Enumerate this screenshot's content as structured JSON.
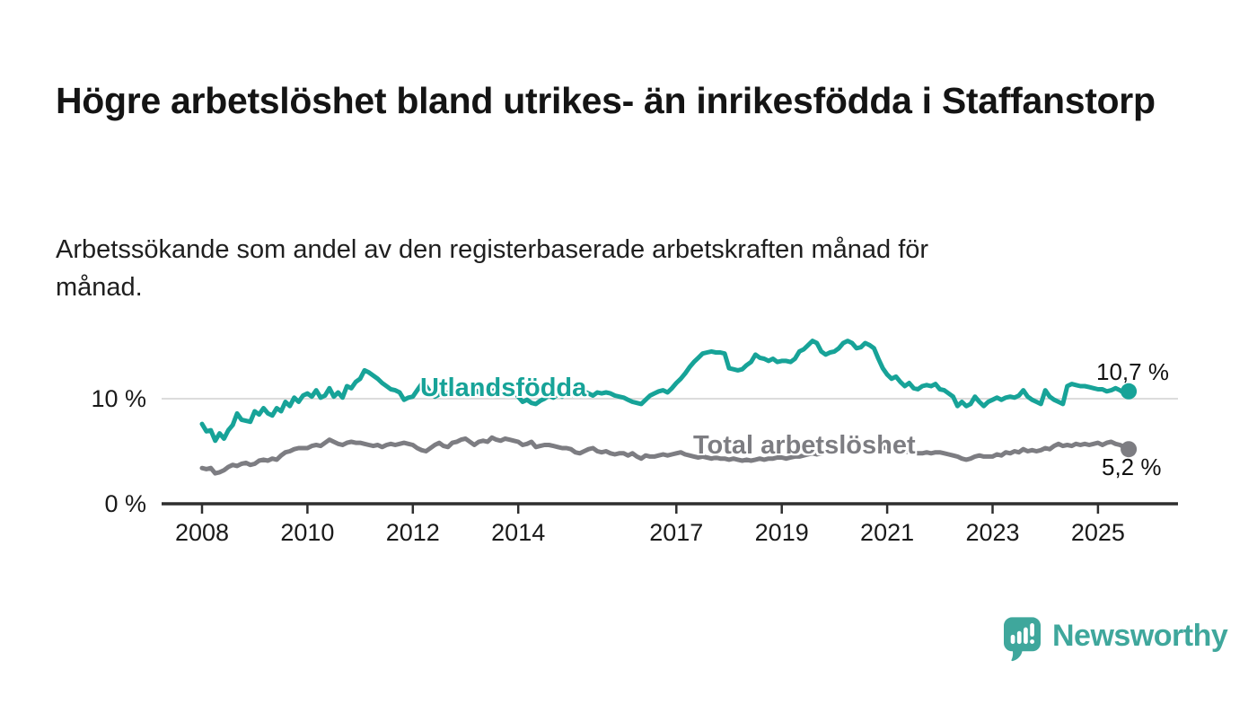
{
  "chart_data": {
    "type": "line",
    "title": "Högre arbetslöshet bland utrikes- än inrikesfödda i Staffanstorp",
    "subtitle": "Arbetssökande som andel av den registerbaserade arbetskraften månad för månad.",
    "x_axis": {
      "unit": "month",
      "start_year": 2008,
      "end": "2025-08",
      "ticks": [
        2008,
        2010,
        2012,
        2014,
        2017,
        2019,
        2021,
        2023,
        2025
      ]
    },
    "y_axis": {
      "ticks": [
        {
          "value": 0,
          "label": "0 %"
        },
        {
          "value": 10,
          "label": "10 %"
        }
      ],
      "ylim": [
        0,
        17.2
      ],
      "grid": "horizontal gridline at 10 % only"
    },
    "legend_position": "inline labels on lines",
    "series": [
      {
        "id": "utlandsfodda",
        "name": "Utlandsfödda",
        "color": "#17a398",
        "end_label": "10,7 %",
        "end_value": 10.7,
        "values": [
          7.6,
          6.9,
          7.0,
          6.0,
          6.7,
          6.2,
          7.0,
          7.5,
          8.6,
          8.0,
          7.9,
          7.8,
          8.8,
          8.5,
          9.1,
          8.6,
          8.4,
          9.1,
          8.8,
          9.7,
          9.3,
          10.1,
          9.7,
          10.3,
          10.5,
          10.2,
          10.8,
          10.1,
          10.3,
          11.0,
          10.2,
          10.6,
          10.1,
          11.2,
          11.0,
          11.6,
          11.9,
          12.7,
          12.5,
          12.2,
          11.9,
          11.5,
          11.2,
          10.9,
          10.8,
          10.6,
          9.9,
          10.1,
          10.2,
          10.8,
          11.4,
          11.2,
          10.6,
          10.2,
          10.4,
          10.7,
          10.5,
          10.8,
          10.6,
          10.9,
          11.0,
          10.7,
          10.9,
          10.6,
          10.8,
          10.5,
          10.7,
          10.9,
          10.6,
          10.8,
          10.5,
          10.6,
          10.2,
          9.7,
          9.9,
          9.6,
          9.5,
          9.8,
          10.0,
          10.3,
          10.1,
          10.4,
          10.2,
          10.5,
          10.3,
          10.6,
          10.4,
          10.7,
          10.5,
          10.3,
          10.6,
          10.5,
          10.6,
          10.5,
          10.3,
          10.2,
          10.1,
          9.9,
          9.7,
          9.6,
          9.5,
          9.9,
          10.3,
          10.5,
          10.7,
          10.8,
          10.6,
          11.0,
          11.5,
          11.9,
          12.4,
          13.0,
          13.5,
          13.9,
          14.3,
          14.4,
          14.5,
          14.4,
          14.4,
          14.3,
          12.9,
          12.8,
          12.7,
          12.8,
          13.2,
          13.5,
          14.2,
          13.9,
          13.8,
          13.6,
          13.8,
          13.5,
          13.6,
          13.6,
          13.5,
          13.8,
          14.5,
          14.7,
          15.1,
          15.5,
          15.3,
          14.5,
          14.2,
          14.4,
          14.5,
          14.8,
          15.3,
          15.5,
          15.3,
          14.8,
          14.9,
          15.3,
          15.1,
          14.8,
          13.8,
          12.9,
          12.3,
          11.9,
          12.1,
          11.6,
          11.2,
          11.5,
          11.0,
          10.9,
          11.2,
          11.3,
          11.2,
          11.4,
          10.9,
          10.8,
          10.5,
          10.2,
          9.3,
          9.7,
          9.3,
          9.5,
          10.2,
          9.7,
          9.3,
          9.7,
          9.9,
          10.1,
          9.9,
          10.1,
          10.2,
          10.1,
          10.3,
          10.8,
          10.2,
          9.9,
          9.7,
          9.5,
          10.8,
          10.2,
          9.9,
          9.7,
          9.5,
          11.2,
          11.4,
          11.3,
          11.2,
          11.2,
          11.1,
          11.0,
          10.9,
          10.9,
          10.7,
          10.8,
          11.0,
          10.8,
          10.5,
          10.7
        ]
      },
      {
        "id": "total",
        "name": "Total arbetslöshet",
        "color": "#7d7d82",
        "end_label": "5,2 %",
        "end_value": 5.2,
        "values": [
          3.4,
          3.3,
          3.4,
          2.9,
          3.0,
          3.2,
          3.5,
          3.7,
          3.6,
          3.8,
          3.9,
          3.7,
          3.8,
          4.1,
          4.2,
          4.1,
          4.3,
          4.2,
          4.6,
          4.9,
          5.0,
          5.2,
          5.3,
          5.3,
          5.3,
          5.5,
          5.6,
          5.5,
          5.8,
          6.1,
          5.9,
          5.7,
          5.6,
          5.8,
          5.9,
          5.8,
          5.8,
          5.7,
          5.6,
          5.5,
          5.6,
          5.4,
          5.6,
          5.7,
          5.6,
          5.7,
          5.8,
          5.7,
          5.6,
          5.3,
          5.1,
          5.0,
          5.3,
          5.6,
          5.8,
          5.5,
          5.4,
          5.8,
          5.9,
          6.1,
          6.2,
          5.9,
          5.6,
          5.9,
          6.0,
          5.9,
          6.3,
          6.1,
          6.0,
          6.2,
          6.1,
          6.0,
          5.9,
          5.6,
          5.7,
          5.9,
          5.4,
          5.5,
          5.6,
          5.6,
          5.5,
          5.4,
          5.3,
          5.3,
          5.2,
          4.9,
          4.8,
          5.0,
          5.2,
          5.3,
          5.0,
          4.9,
          5.0,
          4.8,
          4.7,
          4.8,
          4.8,
          4.6,
          4.8,
          4.5,
          4.3,
          4.6,
          4.5,
          4.5,
          4.6,
          4.7,
          4.6,
          4.7,
          4.8,
          4.9,
          4.7,
          4.6,
          4.5,
          4.4,
          4.5,
          4.4,
          4.3,
          4.4,
          4.3,
          4.3,
          4.2,
          4.3,
          4.2,
          4.1,
          4.2,
          4.1,
          4.2,
          4.3,
          4.2,
          4.3,
          4.3,
          4.4,
          4.4,
          4.3,
          4.4,
          4.5,
          4.5,
          4.6,
          4.7,
          4.8,
          4.7,
          4.8,
          4.9,
          5.0,
          5.0,
          5.1,
          5.3,
          5.6,
          5.8,
          5.9,
          5.8,
          5.7,
          5.6,
          5.5,
          5.4,
          5.4,
          5.3,
          5.3,
          5.2,
          5.1,
          5.0,
          4.9,
          4.9,
          4.8,
          4.8,
          4.9,
          4.8,
          4.9,
          4.9,
          4.8,
          4.7,
          4.6,
          4.5,
          4.3,
          4.2,
          4.3,
          4.5,
          4.6,
          4.5,
          4.5,
          4.5,
          4.7,
          4.6,
          4.9,
          4.8,
          5.0,
          4.9,
          5.2,
          5.0,
          5.1,
          5.0,
          5.1,
          5.3,
          5.2,
          5.5,
          5.7,
          5.5,
          5.6,
          5.5,
          5.7,
          5.6,
          5.7,
          5.6,
          5.7,
          5.8,
          5.6,
          5.8,
          5.9,
          5.7,
          5.6,
          5.4,
          5.2
        ]
      }
    ],
    "colors": {
      "axis": "#2e2e2e",
      "gridline": "#dcdcdc",
      "tick_text": "#1a1a1a"
    }
  },
  "footer": {
    "brand": "Newsworthy",
    "brand_color": "#3fa79c"
  }
}
